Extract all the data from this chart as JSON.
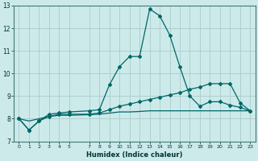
{
  "xlabel": "Humidex (Indice chaleur)",
  "background_color": "#cceaea",
  "grid_color": "#aacccc",
  "line_color": "#006666",
  "x": [
    0,
    1,
    2,
    3,
    4,
    5,
    7,
    8,
    9,
    10,
    11,
    12,
    13,
    14,
    15,
    16,
    17,
    18,
    19,
    20,
    21,
    22,
    23
  ],
  "series1": [
    8.0,
    7.5,
    7.9,
    8.2,
    8.25,
    8.3,
    8.35,
    8.4,
    9.5,
    10.3,
    10.75,
    10.75,
    12.85,
    12.55,
    11.7,
    10.3,
    9.0,
    8.55,
    8.75,
    8.75,
    8.6,
    8.5,
    8.35
  ],
  "series2": [
    8.0,
    7.5,
    7.9,
    8.1,
    8.2,
    8.2,
    8.2,
    8.25,
    8.4,
    8.55,
    8.65,
    8.75,
    8.85,
    8.95,
    9.05,
    9.15,
    9.3,
    9.4,
    9.55,
    9.55,
    9.55,
    8.7,
    8.35
  ],
  "series3": [
    8.0,
    7.9,
    8.0,
    8.1,
    8.15,
    8.15,
    8.18,
    8.2,
    8.25,
    8.3,
    8.3,
    8.32,
    8.35,
    8.35,
    8.35,
    8.35,
    8.35,
    8.35,
    8.35,
    8.35,
    8.35,
    8.35,
    8.35
  ],
  "ylim": [
    7,
    13
  ],
  "xlim": [
    -0.5,
    23.5
  ],
  "yticks": [
    7,
    8,
    9,
    10,
    11,
    12,
    13
  ],
  "xtick_positions": [
    0,
    1,
    2,
    3,
    4,
    5,
    7,
    8,
    9,
    10,
    11,
    12,
    13,
    14,
    15,
    16,
    17,
    18,
    19,
    20,
    21,
    22,
    23
  ],
  "xtick_labels": [
    "0",
    "1",
    "2",
    "3",
    "4",
    "5",
    "7",
    "8",
    "9",
    "10",
    "11",
    "12",
    "13",
    "14",
    "15",
    "16",
    "17",
    "18",
    "19",
    "20",
    "21",
    "22",
    "23"
  ]
}
